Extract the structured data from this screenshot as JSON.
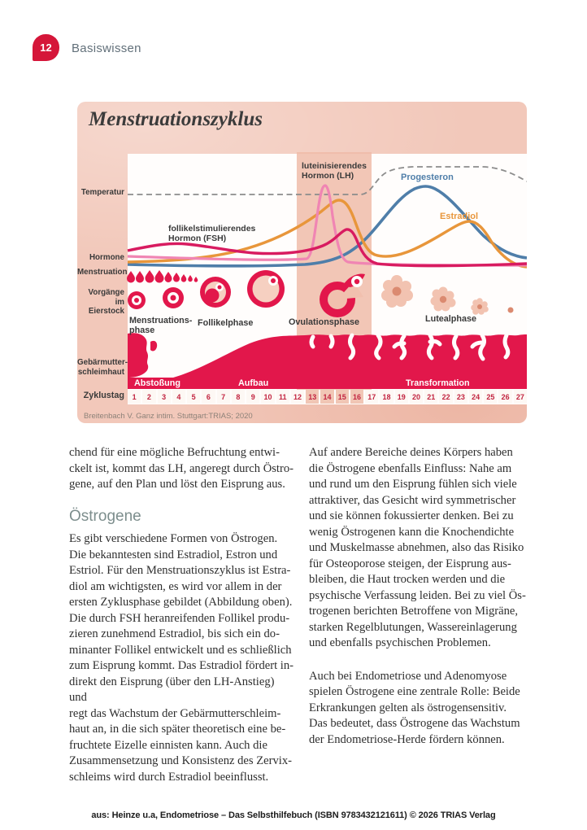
{
  "page": {
    "number": "12",
    "section": "Basiswissen"
  },
  "diagram": {
    "title": "Menstruationszyklus",
    "axis_labels": {
      "temperatur": "Temperatur",
      "hormone": "Hormone",
      "menstruation": "Menstruation",
      "vorgaenge": "Vorgänge\nim Eierstock",
      "gebaermutterschleimhaut": "Gebärmutter-\nschleimhaut",
      "zyklustag": "Zyklustag"
    },
    "curve_labels": {
      "lh": "luteinisierendes\nHormon (LH)",
      "fsh": "follikelstimulierendes\nHormon (FSH)",
      "progesteron": "Progesteron",
      "estradiol": "Estradiol"
    },
    "phases": {
      "menstruationsphase": "Menstruations-\nphase",
      "follikelphase": "Follikelphase",
      "ovulationsphase": "Ovulationsphase",
      "lutealphase": "Lutealphase"
    },
    "endometrium_stages": {
      "abstossung": "Abstoßung",
      "aufbau": "Aufbau",
      "transformation": "Transformation"
    },
    "cycle_days": [
      1,
      2,
      3,
      4,
      5,
      6,
      7,
      8,
      9,
      10,
      11,
      12,
      13,
      14,
      15,
      16,
      17,
      18,
      19,
      20,
      21,
      22,
      23,
      24,
      25,
      26,
      27
    ],
    "ovulation_highlight_days": [
      13,
      14,
      15,
      16
    ],
    "colors": {
      "lh_pink": "#f085b3",
      "fsh_magenta": "#d81b60",
      "estradiol_orange": "#e8963b",
      "progesteron_blue": "#4f7ea9",
      "temperatur_gray": "#8c8c8c",
      "red": "#e2174b",
      "salmon_background": "#f2c8ba"
    },
    "source": "Breitenbach V. Ganz intim. Stuttgart:TRIAS; 2020"
  },
  "chart_data": {
    "type": "line",
    "x_axis_label": "Zyklustag",
    "x_range": [
      1,
      27
    ],
    "series": [
      {
        "name": "Temperatur",
        "color": "#8c8c8c",
        "style": "dashed",
        "shape": "flach bis zum Eisprung, danach erhöhtes Plateau"
      },
      {
        "name": "luteinisierendes Hormon (LH)",
        "color": "#f085b3",
        "shape": "scharfer schmaler Peak in der Ovulationsphase"
      },
      {
        "name": "follikelstimulierendes Hormon (FSH)",
        "color": "#d81b60",
        "shape": "leichte Erhöhung in der Follikelphase, kleiner Peak zur Ovulation"
      },
      {
        "name": "Estradiol",
        "color": "#e8963b",
        "shape": "großer Peak kurz vor dem Eisprung, zweiter flacher Gipfel in der Lutealphase"
      },
      {
        "name": "Progesteron",
        "color": "#4f7ea9",
        "shape": "breiter Gipfel in der Lutealphase"
      }
    ],
    "phase_spans": {
      "Abstoßung": "Tage 1–4",
      "Aufbau": "Tage 5–13",
      "Ovulation (Band)": "Tage 13–16",
      "Transformation": "Tage 17–27"
    }
  },
  "article": {
    "left_column": {
      "para1": "chend für eine mögliche Befruchtung entwi-\nckelt ist, kommt das LH, angeregt durch Östro-\ngene, auf den Plan und löst den Eisprung aus.",
      "heading": "Östrogene",
      "para2": "Es gibt verschiedene Formen von Östrogen.\nDie bekanntesten sind Estradiol, Estron und\nEstriol. Für den Menstruationszyklus ist Estra-\ndiol am wichtigsten, es wird vor allem in der\nersten Zyklusphase gebildet (Abbildung oben).\nDie durch FSH heranreifenden Follikel produ-\nzieren zunehmend Estradiol, bis sich ein do-\nminanter Follikel entwickelt und es schließlich\nzum Eisprung kommt. Das Estradiol fördert in-\ndirekt den Eisprung (über den LH-Anstieg) und\nregt das Wachstum der Gebärmutterschleim-\nhaut an, in die sich später theoretisch eine be-\nfruchtete Eizelle einnisten kann. Auch die\nZusammensetzung und Konsistenz des Zervix-\nschleims wird durch Estradiol beeinflusst."
    },
    "right_column": {
      "para1": "Auf andere Bereiche deines Körpers haben\ndie Östrogene ebenfalls Einfluss: Nahe am\nund rund um den Eisprung fühlen sich viele\nattraktiver, das Gesicht wird symmetrischer\nund sie können fokussierter denken. Bei zu\nwenig Östrogenen kann die Knochendichte\nund Muskelmasse abnehmen, also das Risiko\nfür Osteoporose steigen, der Eisprung aus-\nbleiben, die Haut trocken werden und die\npsychische Verfassung leiden. Bei zu viel Ös-\ntrogenen berichten Betroffene von Migräne,\nstarken Regelblutungen, Wassereinlagerung\nund ebenfalls psychischen Problemen.",
      "para2": "Auch bei Endometriose und Adenomyose\nspielen Östrogene eine zentrale Rolle: Beide\nErkrankungen gelten als östrogensensitiv.\nDas bedeutet, dass Östrogene das Wachstum\nder Endometriose-Herde fördern können."
    }
  },
  "footer": {
    "text": "aus: Heinze u.a, Endometriose – Das Selbsthilfebuch (ISBN 9783432121611) © 2026 TRIAS Verlag"
  }
}
